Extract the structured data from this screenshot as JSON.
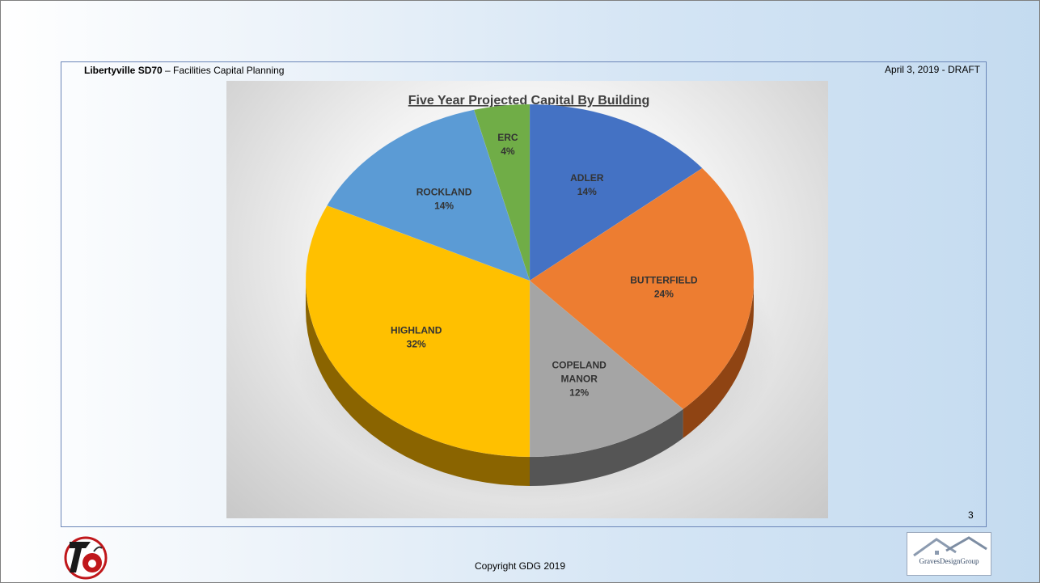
{
  "header": {
    "org_bold": "Libertyville SD70",
    "org_rest": " – Facilities Capital Planning",
    "date_status": "April 3, 2019 - DRAFT"
  },
  "page_number": "3",
  "footer": {
    "copyright": "Copyright GDG 2019",
    "gdg_logo_text": "GravesDesignGroup"
  },
  "chart_data": {
    "type": "pie",
    "title": "Five Year Projected Capital By Building",
    "slices": [
      {
        "name": "ADLER",
        "value": 14,
        "label_pct": "14%",
        "color": "#4472c4",
        "side_color": "#2b4d8c"
      },
      {
        "name": "BUTTERFIELD",
        "value": 24,
        "label_pct": "24%",
        "color": "#ed7d31",
        "side_color": "#8f4413"
      },
      {
        "name": "COPELAND MANOR",
        "value": 12,
        "label_pct": "12%",
        "color": "#a5a5a5",
        "side_color": "#555555"
      },
      {
        "name": "HIGHLAND",
        "value": 32,
        "label_pct": "32%",
        "color": "#ffc000",
        "side_color": "#8a6400"
      },
      {
        "name": "ROCKLAND",
        "value": 14,
        "label_pct": "14%",
        "color": "#5b9bd5",
        "side_color": "#2f5f8c"
      },
      {
        "name": "ERC",
        "value": 4,
        "label_pct": "4%",
        "color": "#70ad47",
        "side_color": "#3d6b22"
      }
    ]
  }
}
